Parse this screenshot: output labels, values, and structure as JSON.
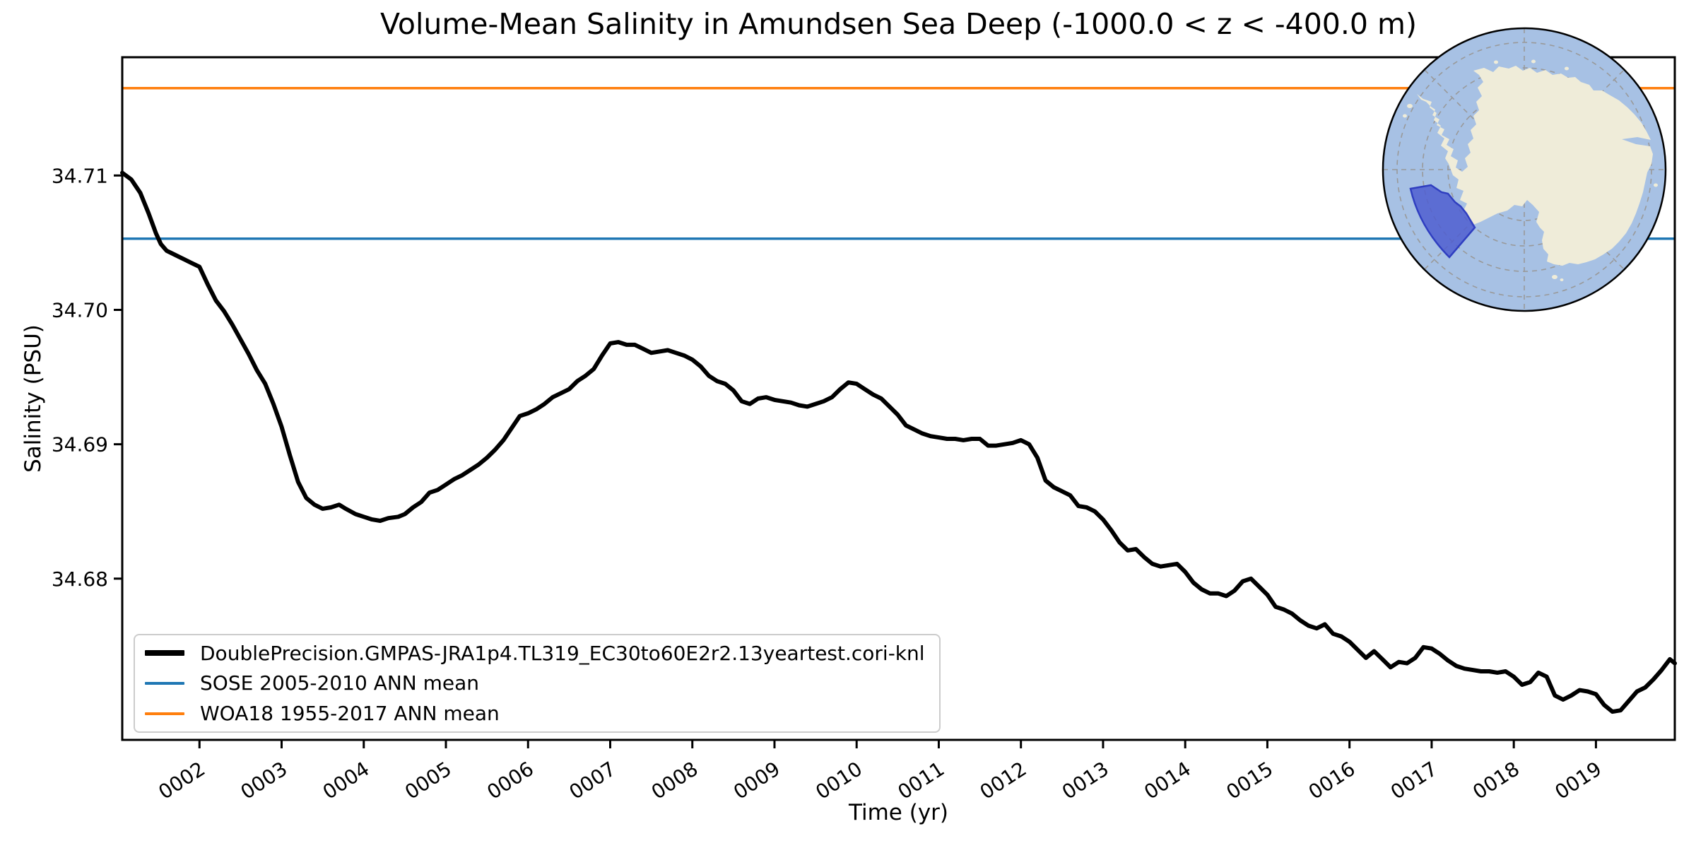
{
  "figure": {
    "title": "Volume-Mean Salinity in Amundsen Sea Deep (-1000.0 < z < -400.0 m)",
    "xlabel": "Time (yr)",
    "ylabel": "Salinity (PSU)"
  },
  "colors": {
    "series": "#000000",
    "sose": "#1f77b4",
    "woa": "#ff7f0e",
    "frame": "#000000",
    "tick_text": "#000000",
    "map_ocean": "#a7c1e4",
    "map_land": "#efecd9",
    "map_region_fill": "#4f5ed0",
    "map_region_stroke": "#2f3ec0",
    "map_graticule": "#999999",
    "map_border": "#000000"
  },
  "chart_data": {
    "type": "line",
    "title": "Volume-Mean Salinity in Amundsen Sea Deep (-1000.0 < z < -400.0 m)",
    "xlabel": "Time (yr)",
    "ylabel": "Salinity (PSU)",
    "xlim": [
      1.06,
      19.96
    ],
    "ylim": [
      34.668,
      34.7188
    ],
    "grid": false,
    "legend_position": "lower left",
    "xticks": {
      "values": [
        2,
        3,
        4,
        5,
        6,
        7,
        8,
        9,
        10,
        11,
        12,
        13,
        14,
        15,
        16,
        17,
        18,
        19
      ],
      "labels": [
        "0002",
        "0003",
        "0004",
        "0005",
        "0006",
        "0007",
        "0008",
        "0009",
        "0010",
        "0011",
        "0012",
        "0013",
        "0014",
        "0015",
        "0016",
        "0017",
        "0018",
        "0019"
      ],
      "rotation_deg": -33
    },
    "yticks": {
      "values": [
        34.68,
        34.69,
        34.7,
        34.71
      ],
      "labels": [
        "34.68",
        "34.69",
        "34.70",
        "34.71"
      ]
    },
    "series": [
      {
        "name": "DoublePrecision.GMPAS-JRA1p4.TL319_EC30to60E2r2.13yeartest.cori-knl",
        "type": "line",
        "color": "#000000",
        "width": 6,
        "x": [
          1.06,
          1.17,
          1.28,
          1.38,
          1.47,
          1.53,
          1.6,
          1.7,
          1.8,
          1.9,
          2.0,
          2.1,
          2.2,
          2.3,
          2.4,
          2.5,
          2.6,
          2.7,
          2.8,
          2.9,
          3.0,
          3.1,
          3.2,
          3.3,
          3.4,
          3.5,
          3.6,
          3.7,
          3.78,
          3.9,
          4.0,
          4.1,
          4.2,
          4.3,
          4.42,
          4.5,
          4.6,
          4.7,
          4.8,
          4.9,
          5.0,
          5.1,
          5.2,
          5.3,
          5.4,
          5.5,
          5.6,
          5.7,
          5.8,
          5.9,
          6.0,
          6.1,
          6.2,
          6.3,
          6.4,
          6.5,
          6.6,
          6.7,
          6.8,
          6.9,
          7.0,
          7.1,
          7.2,
          7.3,
          7.4,
          7.5,
          7.6,
          7.7,
          7.8,
          7.9,
          8.0,
          8.1,
          8.2,
          8.3,
          8.4,
          8.5,
          8.6,
          8.7,
          8.8,
          8.9,
          9.0,
          9.1,
          9.2,
          9.3,
          9.4,
          9.5,
          9.6,
          9.7,
          9.8,
          9.9,
          10.0,
          10.1,
          10.2,
          10.3,
          10.4,
          10.5,
          10.6,
          10.7,
          10.8,
          10.9,
          11.0,
          11.1,
          11.2,
          11.3,
          11.4,
          11.5,
          11.6,
          11.7,
          11.8,
          11.9,
          12.0,
          12.1,
          12.2,
          12.3,
          12.4,
          12.5,
          12.6,
          12.7,
          12.8,
          12.9,
          13.0,
          13.1,
          13.2,
          13.3,
          13.4,
          13.5,
          13.6,
          13.7,
          13.8,
          13.9,
          14.0,
          14.1,
          14.2,
          14.3,
          14.4,
          14.5,
          14.6,
          14.7,
          14.8,
          14.9,
          15.0,
          15.1,
          15.2,
          15.3,
          15.4,
          15.5,
          15.6,
          15.7,
          15.8,
          15.9,
          16.0,
          16.1,
          16.2,
          16.3,
          16.4,
          16.5,
          16.6,
          16.7,
          16.8,
          16.9,
          17.0,
          17.1,
          17.2,
          17.3,
          17.4,
          17.5,
          17.6,
          17.7,
          17.8,
          17.9,
          18.0,
          18.1,
          18.2,
          18.3,
          18.4,
          18.5,
          18.6,
          18.7,
          18.8,
          18.9,
          19.0,
          19.1,
          19.2,
          19.3,
          19.4,
          19.5,
          19.6,
          19.7,
          19.8,
          19.9,
          19.96
        ],
        "y": [
          34.7102,
          34.7097,
          34.7087,
          34.7072,
          34.7057,
          34.7049,
          34.7044,
          34.7041,
          34.7038,
          34.7035,
          34.7032,
          34.7019,
          34.7007,
          34.6999,
          34.6989,
          34.6978,
          34.6967,
          34.6955,
          34.6945,
          34.693,
          34.6913,
          34.6892,
          34.6872,
          34.686,
          34.6855,
          34.6852,
          34.6853,
          34.6855,
          34.6852,
          34.6848,
          34.6846,
          34.6844,
          34.6843,
          34.6845,
          34.6846,
          34.6848,
          34.6853,
          34.6857,
          34.6864,
          34.6866,
          34.687,
          34.6874,
          34.6877,
          34.6881,
          34.6885,
          34.689,
          34.6896,
          34.6903,
          34.6912,
          34.6921,
          34.6923,
          34.6926,
          34.693,
          34.6935,
          34.6938,
          34.6941,
          34.6947,
          34.6951,
          34.6956,
          34.6966,
          34.6975,
          34.6976,
          34.6974,
          34.6974,
          34.6971,
          34.6968,
          34.6969,
          34.697,
          34.6968,
          34.6966,
          34.6963,
          34.6958,
          34.6951,
          34.6947,
          34.6945,
          34.694,
          34.6932,
          34.693,
          34.6934,
          34.6935,
          34.6933,
          34.6932,
          34.6931,
          34.6929,
          34.6928,
          34.693,
          34.6932,
          34.6935,
          34.6941,
          34.6946,
          34.6945,
          34.6941,
          34.6937,
          34.6934,
          34.6928,
          34.6922,
          34.6914,
          34.6911,
          34.6908,
          34.6906,
          34.6905,
          34.6904,
          34.6904,
          34.6903,
          34.6904,
          34.6904,
          34.6899,
          34.6899,
          34.69,
          34.6901,
          34.6903,
          34.69,
          34.689,
          34.6873,
          34.6868,
          34.6865,
          34.6862,
          34.6854,
          34.6853,
          34.685,
          34.6844,
          34.6836,
          34.6827,
          34.6821,
          34.6822,
          34.6816,
          34.6811,
          34.6809,
          34.681,
          34.6811,
          34.6805,
          34.6797,
          34.6792,
          34.6789,
          34.6789,
          34.6787,
          34.6791,
          34.6798,
          34.68,
          34.6794,
          34.6788,
          34.6779,
          34.6777,
          34.6774,
          34.6769,
          34.6765,
          34.6763,
          34.6766,
          34.6759,
          34.6757,
          34.6753,
          34.6747,
          34.6741,
          34.6746,
          34.674,
          34.6734,
          34.6738,
          34.6737,
          34.6741,
          34.6749,
          34.6748,
          34.6744,
          34.6739,
          34.6735,
          34.6733,
          34.6732,
          34.6731,
          34.6731,
          34.673,
          34.6731,
          34.6727,
          34.6721,
          34.6723,
          34.673,
          34.6727,
          34.6713,
          34.671,
          34.6713,
          34.6717,
          34.6716,
          34.6714,
          34.6706,
          34.6701,
          34.6702,
          34.6709,
          34.6716,
          34.6719,
          34.6725,
          34.6732,
          34.674,
          34.6737
        ]
      },
      {
        "name": "SOSE 2005-2010 ANN mean",
        "type": "hline",
        "value": 34.7053,
        "color": "#1f77b4",
        "width": 3.5
      },
      {
        "name": "WOA18 1955-2017 ANN mean",
        "type": "hline",
        "value": 34.7165,
        "color": "#ff7f0e",
        "width": 3.5
      }
    ],
    "inset_map": {
      "description": "South polar stereographic map of Antarctica with the Amundsen Sea sector highlighted in blue",
      "highlighted_region": "Amundsen Sea sector (south-west of the continent)"
    }
  }
}
